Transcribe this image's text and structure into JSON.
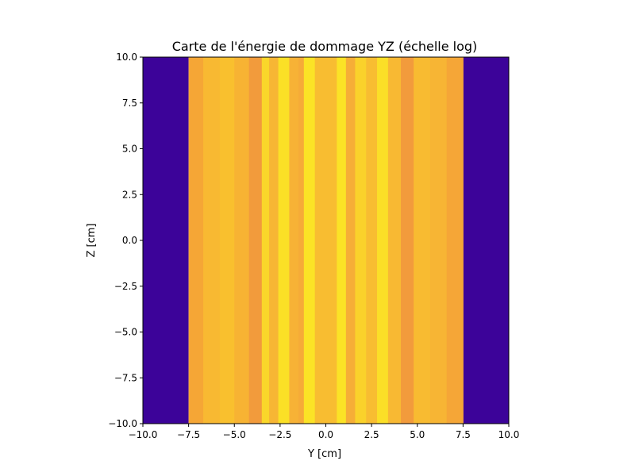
{
  "chart_data": {
    "type": "heatmap",
    "title": "Carte de l'énergie de dommage YZ (échelle log)",
    "xlabel": "Y [cm]",
    "ylabel": "Z [cm]",
    "xlim": [
      -10.0,
      10.0
    ],
    "ylim": [
      -10.0,
      10.0
    ],
    "xticks": [
      "−10.0",
      "−7.5",
      "−5.0",
      "−2.5",
      "0.0",
      "2.5",
      "5.0",
      "7.5",
      "10.0"
    ],
    "yticks": [
      "10.0",
      "7.5",
      "5.0",
      "2.5",
      "0.0",
      "−2.5",
      "−5.0",
      "−7.5",
      "−10.0"
    ],
    "xtick_values": [
      -10.0,
      -7.5,
      -5.0,
      -2.5,
      0.0,
      2.5,
      5.0,
      7.5,
      10.0
    ],
    "ytick_values": [
      10.0,
      7.5,
      5.0,
      2.5,
      0.0,
      -2.5,
      -5.0,
      -7.5,
      -10.0
    ],
    "grid": false,
    "colormap": "plasma",
    "regions": [
      {
        "y_start": -10.0,
        "y_end": -7.5,
        "color": "#3c0399"
      },
      {
        "y_start": 7.5,
        "y_end": 10.0,
        "color": "#3c0399"
      }
    ],
    "stripes": [
      {
        "y_start": -7.5,
        "y_end": -6.7,
        "color": "#f5a636"
      },
      {
        "y_start": -6.7,
        "y_end": -5.8,
        "color": "#f8b932"
      },
      {
        "y_start": -5.8,
        "y_end": -5.0,
        "color": "#f9c02e"
      },
      {
        "y_start": -5.0,
        "y_end": -4.2,
        "color": "#f7b333"
      },
      {
        "y_start": -4.2,
        "y_end": -3.5,
        "color": "#f29b3c"
      },
      {
        "y_start": -3.5,
        "y_end": -3.1,
        "color": "#fad72a"
      },
      {
        "y_start": -3.1,
        "y_end": -2.6,
        "color": "#f7b634"
      },
      {
        "y_start": -2.6,
        "y_end": -2.0,
        "color": "#fbe026"
      },
      {
        "y_start": -2.0,
        "y_end": -1.5,
        "color": "#f7b236"
      },
      {
        "y_start": -1.5,
        "y_end": -1.2,
        "color": "#f6ab38"
      },
      {
        "y_start": -1.2,
        "y_end": -0.6,
        "color": "#fbe326"
      },
      {
        "y_start": -0.6,
        "y_end": 0.6,
        "color": "#f8bd31"
      },
      {
        "y_start": 0.6,
        "y_end": 1.1,
        "color": "#fbe326"
      },
      {
        "y_start": 1.1,
        "y_end": 1.6,
        "color": "#f6ae37"
      },
      {
        "y_start": 1.6,
        "y_end": 2.2,
        "color": "#fad22b"
      },
      {
        "y_start": 2.2,
        "y_end": 2.8,
        "color": "#f8bd31"
      },
      {
        "y_start": 2.8,
        "y_end": 3.4,
        "color": "#fbdf27"
      },
      {
        "y_start": 3.4,
        "y_end": 4.1,
        "color": "#f8b933"
      },
      {
        "y_start": 4.1,
        "y_end": 4.8,
        "color": "#f29b3c"
      },
      {
        "y_start": 4.8,
        "y_end": 5.7,
        "color": "#f8bb31"
      },
      {
        "y_start": 5.7,
        "y_end": 6.6,
        "color": "#f7b534"
      },
      {
        "y_start": 6.6,
        "y_end": 7.5,
        "color": "#f5a637"
      }
    ]
  }
}
